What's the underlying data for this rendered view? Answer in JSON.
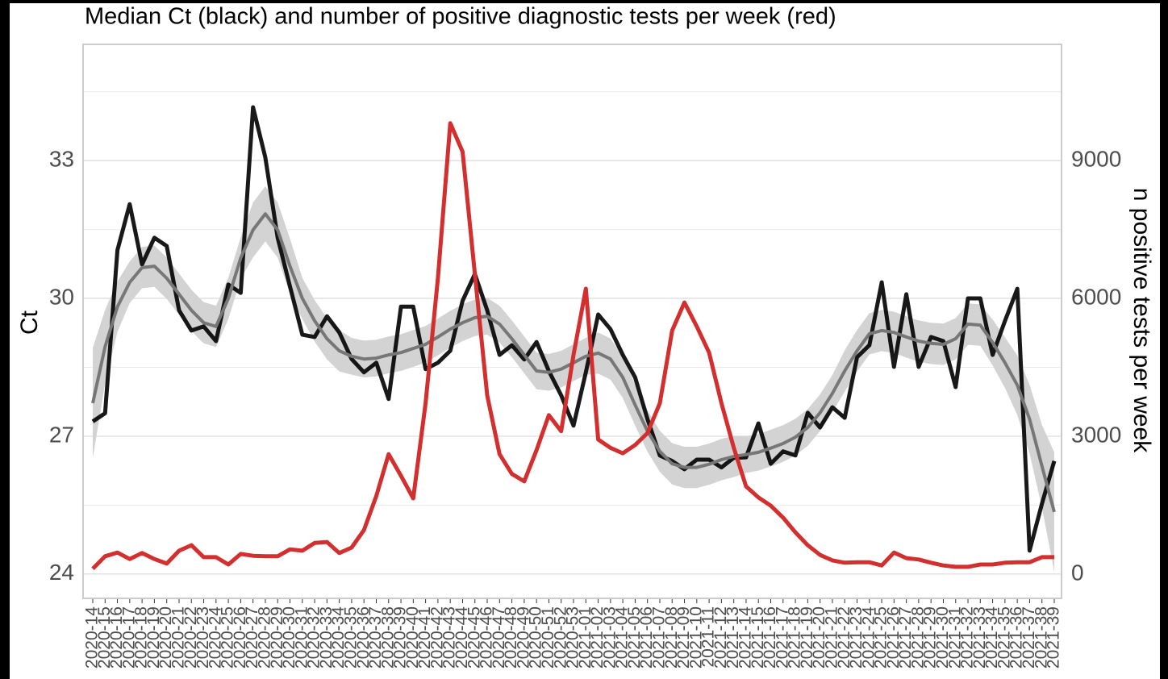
{
  "chart_data": {
    "type": "line",
    "title": "Median Ct (black) and number of positive diagnostic tests per week (red)",
    "ylabel": "Ct",
    "y2label": "n positive tests per week",
    "categories": [
      "2020-14",
      "2020-15",
      "2020-16",
      "2020-17",
      "2020-18",
      "2020-19",
      "2020-20",
      "2020-21",
      "2020-22",
      "2020-23",
      "2020-24",
      "2020-25",
      "2020-26",
      "2020-27",
      "2020-28",
      "2020-29",
      "2020-30",
      "2020-31",
      "2020-32",
      "2020-33",
      "2020-34",
      "2020-35",
      "2020-36",
      "2020-37",
      "2020-38",
      "2020-39",
      "2020-40",
      "2020-41",
      "2020-42",
      "2020-43",
      "2020-44",
      "2020-45",
      "2020-46",
      "2020-47",
      "2020-48",
      "2020-49",
      "2020-50",
      "2020-51",
      "2020-52",
      "2020-53",
      "2021-01",
      "2021-02",
      "2021-03",
      "2021-04",
      "2021-05",
      "2021-06",
      "2021-07",
      "2021-08",
      "2021-09",
      "2021-10",
      "2021-11",
      "2021-12",
      "2021-13",
      "2021-14",
      "2021-15",
      "2021-16",
      "2021-17",
      "2021-18",
      "2021-19",
      "2021-20",
      "2021-21",
      "2021-22",
      "2021-23",
      "2021-24",
      "2021-25",
      "2021-26",
      "2021-27",
      "2021-28",
      "2021-29",
      "2021-30",
      "2021-31",
      "2021-32",
      "2021-33",
      "2021-34",
      "2021-35",
      "2021-36",
      "2021-37",
      "2021-38",
      "2021-39"
    ],
    "series": [
      {
        "color": "#000000",
        "values": [
          27.32,
          27.5,
          31.05,
          32.05,
          30.74,
          31.32,
          31.14,
          29.74,
          29.3,
          29.39,
          29.07,
          30.3,
          30.12,
          34.16,
          33.07,
          31.32,
          30.26,
          29.21,
          29.16,
          29.61,
          29.26,
          28.68,
          28.39,
          28.6,
          27.81,
          29.82,
          29.82,
          28.46,
          28.6,
          28.86,
          29.95,
          30.53,
          29.74,
          28.77,
          28.98,
          28.67,
          29.05,
          28.42,
          27.89,
          27.23,
          28.39,
          29.65,
          29.33,
          28.77,
          28.28,
          27.37,
          26.58,
          26.46,
          26.28,
          26.49,
          26.49,
          26.32,
          26.53,
          26.54,
          27.28,
          26.4,
          26.67,
          26.58,
          27.51,
          27.19,
          27.63,
          27.4,
          28.72,
          28.98,
          30.35,
          28.51,
          30.09,
          28.51,
          29.16,
          29.07,
          28.07,
          30.0,
          30.0,
          28.77,
          29.51,
          30.21,
          24.51,
          25.53,
          26.46
        ]
      },
      {
        "color": "#777777",
        "band_color": "#d3d3d3",
        "values": [
          27.72,
          28.95,
          29.82,
          30.35,
          30.67,
          30.7,
          30.44,
          30.09,
          29.74,
          29.47,
          29.39,
          30.0,
          30.88,
          31.49,
          31.84,
          31.49,
          30.7,
          30.0,
          29.51,
          29.12,
          28.86,
          28.74,
          28.68,
          28.7,
          28.77,
          28.82,
          28.91,
          29.0,
          29.16,
          29.33,
          29.47,
          29.58,
          29.61,
          29.44,
          29.12,
          28.77,
          28.42,
          28.39,
          28.46,
          28.6,
          28.74,
          28.81,
          28.68,
          28.28,
          27.68,
          27.11,
          26.67,
          26.4,
          26.32,
          26.32,
          26.39,
          26.49,
          26.56,
          26.6,
          26.65,
          26.74,
          26.84,
          26.98,
          27.19,
          27.51,
          27.93,
          28.42,
          28.86,
          29.23,
          29.3,
          29.26,
          29.16,
          29.07,
          29.02,
          29.0,
          29.12,
          29.44,
          29.42,
          29.04,
          28.6,
          28.11,
          27.37,
          26.35,
          25.35
        ],
        "lower": [
          26.52,
          28.15,
          29.27,
          29.9,
          30.22,
          30.25,
          29.99,
          29.64,
          29.29,
          29.02,
          28.94,
          29.55,
          30.43,
          30.89,
          31.24,
          30.89,
          30.1,
          29.55,
          29.06,
          28.67,
          28.41,
          28.34,
          28.28,
          28.3,
          28.37,
          28.42,
          28.51,
          28.6,
          28.76,
          28.93,
          29.07,
          29.18,
          29.21,
          29.04,
          28.72,
          28.37,
          28.02,
          27.99,
          28.06,
          28.2,
          28.34,
          28.36,
          28.23,
          27.83,
          27.23,
          26.66,
          26.22,
          25.95,
          25.87,
          25.87,
          25.94,
          26.04,
          26.11,
          26.2,
          26.25,
          26.34,
          26.44,
          26.58,
          26.79,
          27.11,
          27.53,
          27.97,
          28.41,
          28.78,
          28.85,
          28.81,
          28.71,
          28.62,
          28.57,
          28.55,
          28.67,
          28.99,
          28.97,
          28.54,
          28.05,
          27.46,
          26.62,
          25.45,
          24.05
        ],
        "upper": [
          28.92,
          29.75,
          30.37,
          30.8,
          31.12,
          31.15,
          30.89,
          30.54,
          30.19,
          29.92,
          29.84,
          30.45,
          31.33,
          32.09,
          32.44,
          32.09,
          31.3,
          30.45,
          29.96,
          29.57,
          29.31,
          29.14,
          29.08,
          29.1,
          29.17,
          29.22,
          29.31,
          29.4,
          29.56,
          29.73,
          29.87,
          29.98,
          30.01,
          29.84,
          29.52,
          29.17,
          28.82,
          28.79,
          28.86,
          29.0,
          29.14,
          29.26,
          29.13,
          28.73,
          28.13,
          27.56,
          27.12,
          26.85,
          26.77,
          26.77,
          26.84,
          26.94,
          27.01,
          27.0,
          27.05,
          27.14,
          27.24,
          27.38,
          27.59,
          27.91,
          28.33,
          28.87,
          29.31,
          29.68,
          29.75,
          29.71,
          29.61,
          29.52,
          29.47,
          29.45,
          29.57,
          29.89,
          29.87,
          29.54,
          29.15,
          28.76,
          28.12,
          27.25,
          26.65
        ]
      },
      {
        "color": "#d32f2f",
        "axis": "y2",
        "values": [
          120,
          390,
          470,
          330,
          460,
          330,
          230,
          510,
          630,
          370,
          370,
          210,
          440,
          400,
          390,
          390,
          540,
          510,
          680,
          700,
          460,
          580,
          960,
          1700,
          2610,
          2140,
          1650,
          3720,
          6440,
          9810,
          9190,
          6530,
          3890,
          2610,
          2180,
          2020,
          2700,
          3460,
          3110,
          4770,
          6210,
          2930,
          2750,
          2630,
          2810,
          3070,
          3720,
          5300,
          5910,
          5390,
          4820,
          3720,
          2750,
          1910,
          1670,
          1490,
          1230,
          910,
          630,
          420,
          300,
          250,
          260,
          260,
          190,
          470,
          350,
          320,
          250,
          190,
          160,
          160,
          210,
          210,
          250,
          260,
          260,
          370,
          370
        ]
      }
    ],
    "ylim": [
      23.47,
      35.53
    ],
    "yticks": [
      24,
      27,
      30,
      33
    ],
    "yminor": [
      25.5,
      28.5,
      31.5,
      34.5
    ],
    "y2lim": [
      -526,
      11526
    ],
    "y2ticks": [
      0,
      3000,
      6000,
      9000
    ],
    "grid": true
  }
}
